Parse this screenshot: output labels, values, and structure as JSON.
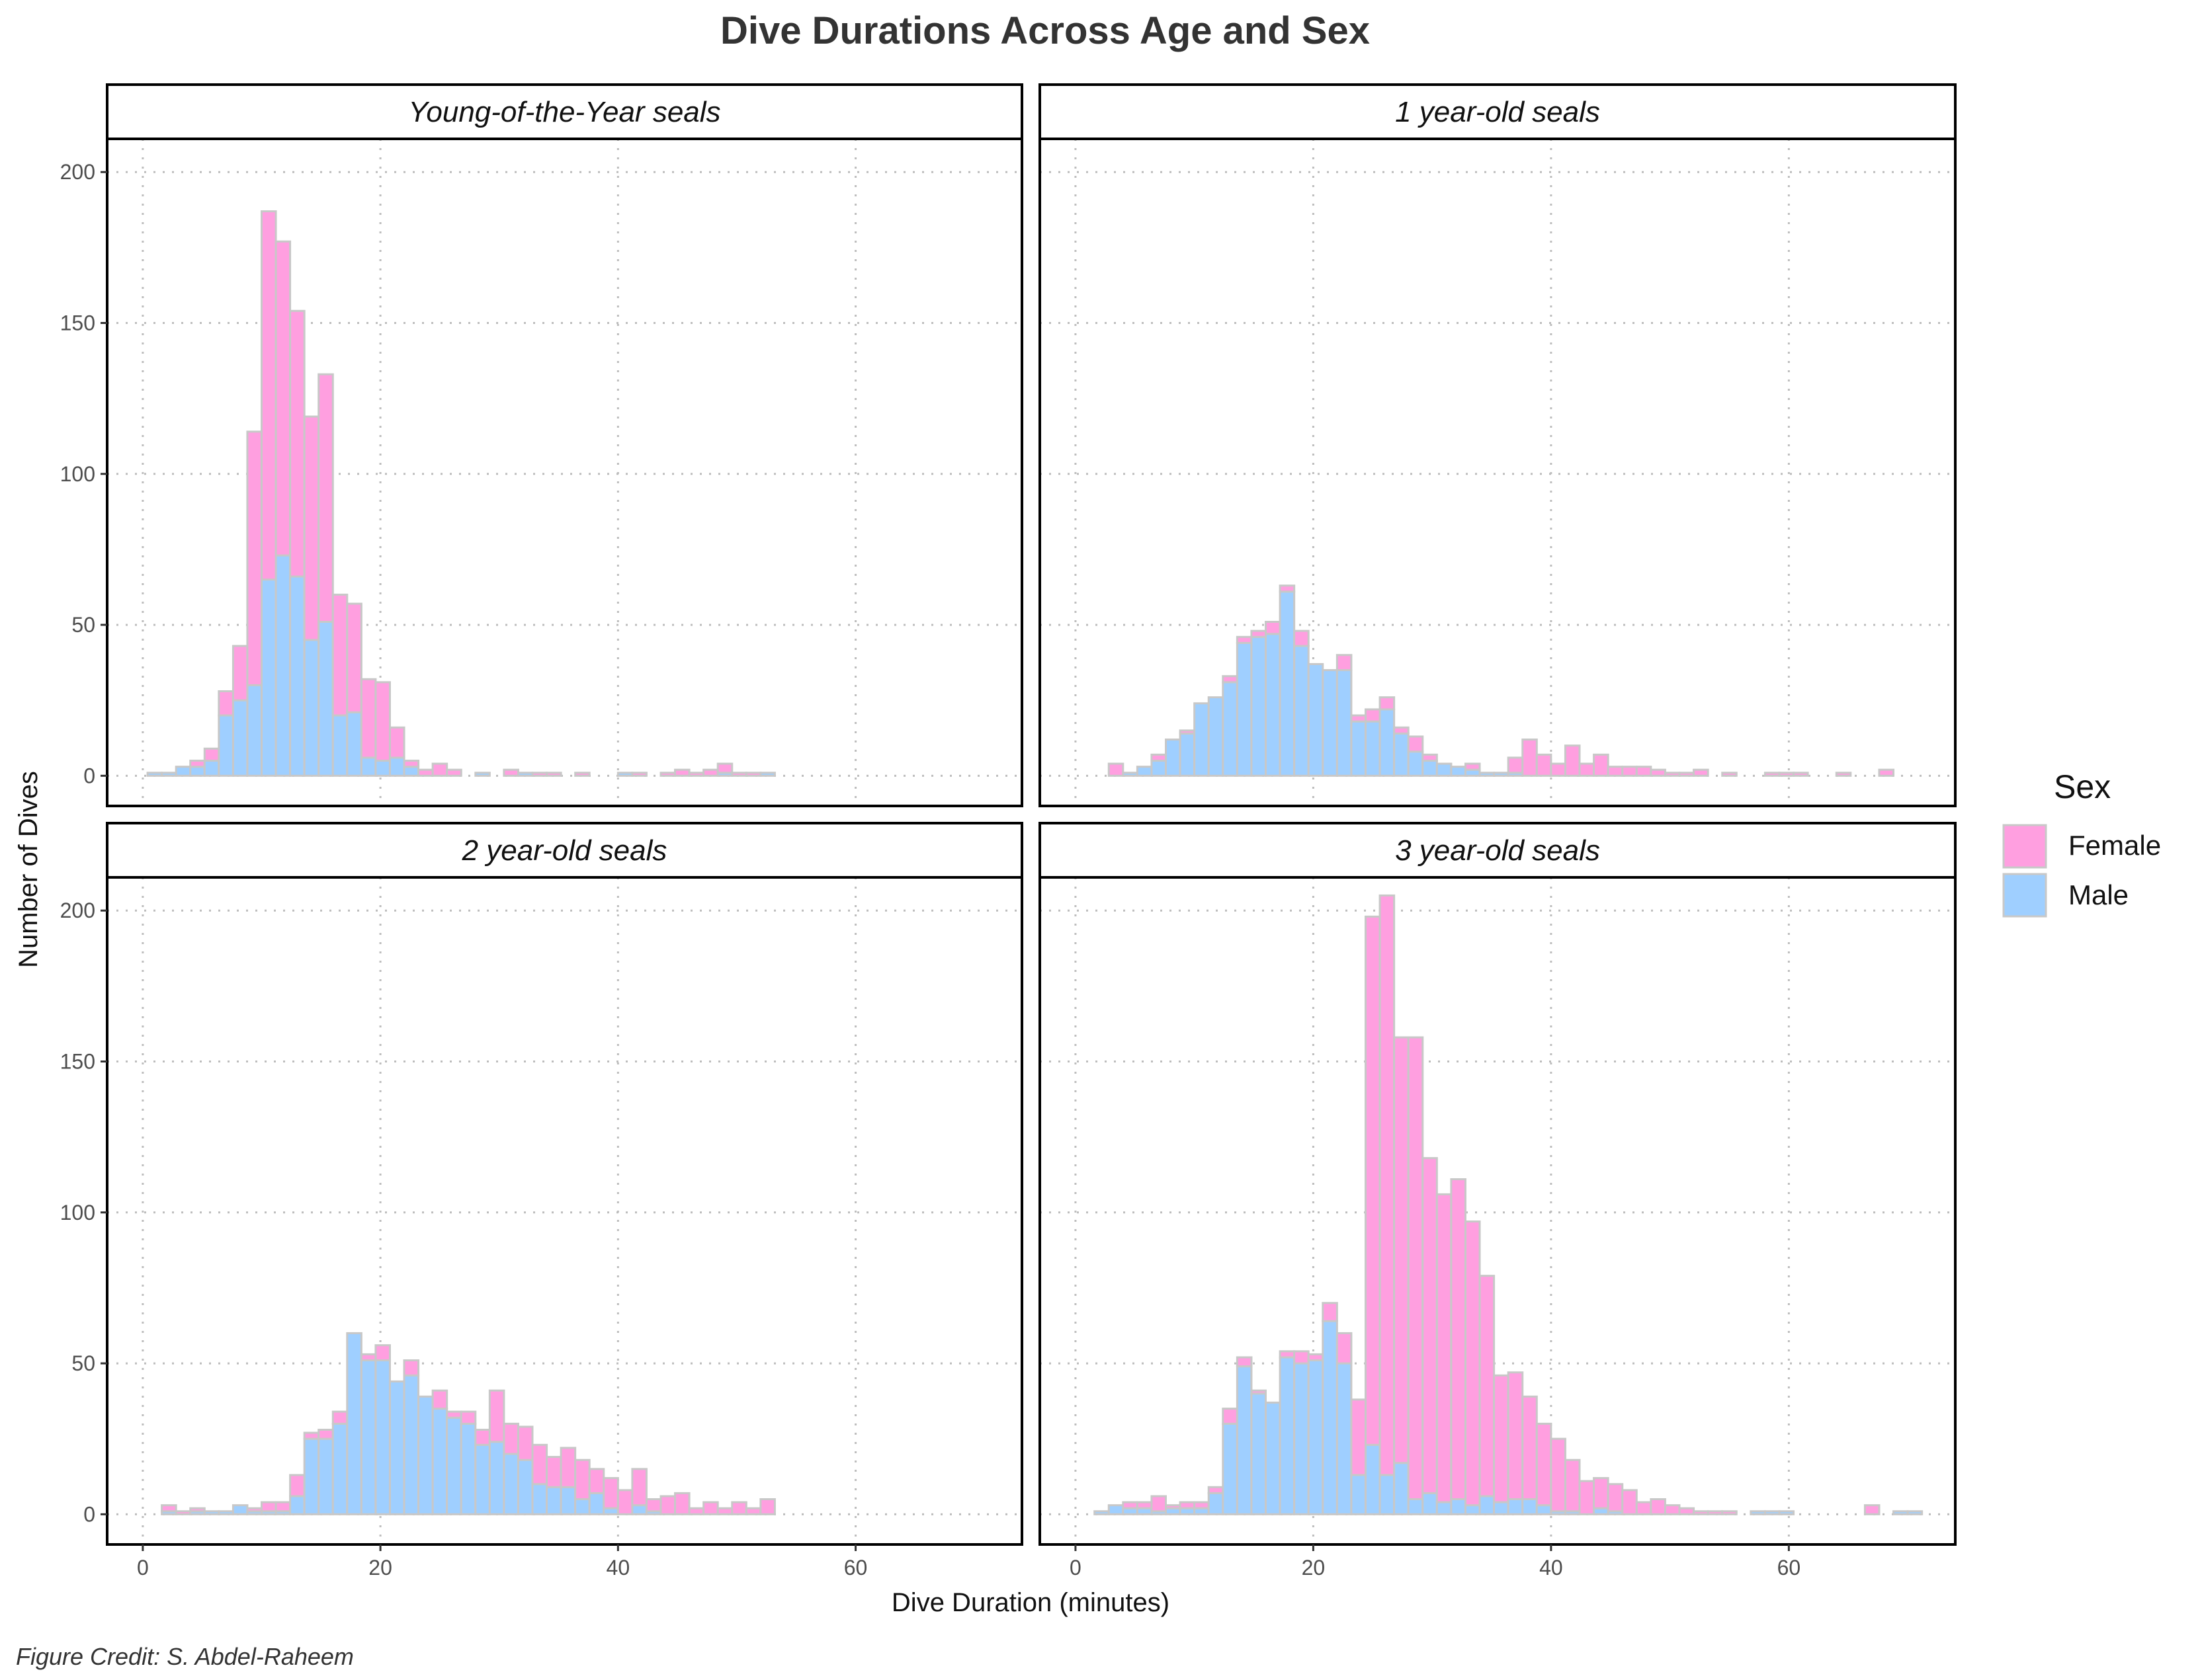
{
  "chart_data": {
    "type": "histogram",
    "title": "Dive Durations Across Age and Sex",
    "xlabel": "Dive Duration (minutes)",
    "ylabel": "Number of Dives",
    "caption": "Figure Credit: S. Abdel-Raheem",
    "xlim": [
      -3,
      74
    ],
    "ylim": [
      -10,
      211
    ],
    "xticks": [
      0,
      20,
      40,
      60
    ],
    "yticks": [
      0,
      50,
      100,
      150,
      200
    ],
    "bin_width": 1.2,
    "bin_start": 0.4,
    "grid": true,
    "position": "stacked (Female on top of Male)",
    "legend": {
      "title": "Sex",
      "placement": "right",
      "entries": [
        {
          "name": "Female",
          "color": "#ff9fe0"
        },
        {
          "name": "Male",
          "color": "#9fcfff"
        }
      ]
    },
    "colors": {
      "female": "#ff9fe0",
      "male": "#9fcfff",
      "bar_outline": "#c8c8c8",
      "grid": "#bdbdbd",
      "strip_border": "#000000"
    },
    "panels": [
      {
        "strip": "Young-of-the-Year seals",
        "female": [
          0,
          0,
          0,
          2,
          4,
          8,
          18,
          84,
          122,
          104,
          88,
          74,
          82,
          40,
          36,
          26,
          26,
          10,
          2,
          2,
          4,
          2,
          0,
          0,
          0,
          2,
          0,
          1,
          1,
          0,
          1,
          0,
          0,
          0,
          1,
          0,
          1,
          2,
          1,
          2,
          3,
          1,
          1,
          0,
          0,
          0,
          0,
          0,
          0,
          0,
          0,
          0,
          0,
          0,
          0,
          0,
          0,
          0,
          0
        ],
        "male": [
          1,
          1,
          3,
          3,
          5,
          20,
          25,
          30,
          65,
          73,
          66,
          45,
          51,
          20,
          21,
          6,
          5,
          6,
          3,
          0,
          0,
          0,
          0,
          1,
          0,
          0,
          1,
          0,
          0,
          0,
          0,
          0,
          0,
          1,
          0,
          0,
          0,
          0,
          0,
          0,
          1,
          0,
          0,
          1,
          0,
          0,
          0,
          0,
          0,
          0,
          0,
          0,
          0,
          0,
          0,
          0,
          0,
          0,
          0
        ]
      },
      {
        "strip": "1 year-old seals",
        "female": [
          0,
          0,
          4,
          0,
          0,
          2,
          0,
          1,
          0,
          0,
          2,
          2,
          2,
          4,
          2,
          5,
          0,
          0,
          5,
          2,
          4,
          4,
          2,
          5,
          2,
          0,
          0,
          2,
          0,
          0,
          5,
          12,
          7,
          4,
          10,
          4,
          7,
          3,
          3,
          3,
          2,
          1,
          1,
          2,
          0,
          1,
          0,
          0,
          1,
          1,
          1,
          0,
          0,
          1,
          0,
          0,
          2,
          0,
          0
        ],
        "male": [
          0,
          0,
          0,
          1,
          3,
          5,
          12,
          14,
          24,
          26,
          31,
          44,
          46,
          47,
          61,
          43,
          37,
          35,
          35,
          18,
          18,
          22,
          14,
          8,
          5,
          4,
          3,
          2,
          1,
          1,
          1,
          0,
          0,
          0,
          0,
          0,
          0,
          0,
          0,
          0,
          0,
          0,
          0,
          0,
          0,
          0,
          0,
          0,
          0,
          0,
          0,
          0,
          0,
          0,
          0,
          0,
          0,
          0,
          0
        ]
      },
      {
        "strip": "2 year-old seals",
        "female": [
          0,
          2,
          1,
          1,
          0,
          0,
          0,
          1,
          3,
          3,
          7,
          2,
          3,
          4,
          0,
          2,
          5,
          0,
          5,
          0,
          6,
          2,
          4,
          5,
          17,
          10,
          11,
          13,
          10,
          13,
          13,
          8,
          10,
          8,
          12,
          4,
          6,
          7,
          2,
          4,
          2,
          4,
          2,
          5,
          0,
          0,
          0,
          0,
          0,
          0,
          0,
          0,
          0,
          0,
          0,
          0,
          0,
          0,
          0
        ],
        "male": [
          0,
          1,
          0,
          1,
          1,
          1,
          3,
          1,
          1,
          1,
          6,
          25,
          25,
          30,
          60,
          51,
          51,
          44,
          46,
          39,
          35,
          32,
          30,
          23,
          24,
          20,
          18,
          10,
          9,
          9,
          5,
          7,
          2,
          0,
          3,
          1,
          0,
          0,
          0,
          0,
          0,
          0,
          0,
          0,
          0,
          0,
          0,
          0,
          0,
          0,
          0,
          0,
          0,
          0,
          0,
          0,
          0,
          0,
          0
        ]
      },
      {
        "strip": "3 year-old seals",
        "female": [
          0,
          0,
          0,
          2,
          2,
          5,
          1,
          2,
          2,
          2,
          5,
          3,
          1,
          0,
          2,
          4,
          2,
          6,
          10,
          25,
          175,
          192,
          141,
          153,
          111,
          102,
          106,
          94,
          73,
          42,
          42,
          34,
          27,
          24,
          17,
          11,
          10,
          9,
          8,
          4,
          5,
          3,
          2,
          1,
          1,
          1,
          0,
          0,
          0,
          0,
          0,
          0,
          0,
          0,
          0,
          3,
          0,
          0,
          0
        ],
        "male": [
          0,
          1,
          3,
          2,
          2,
          1,
          2,
          2,
          2,
          7,
          30,
          49,
          40,
          37,
          52,
          50,
          51,
          64,
          50,
          13,
          23,
          13,
          17,
          5,
          7,
          4,
          5,
          3,
          6,
          4,
          5,
          5,
          3,
          1,
          1,
          0,
          2,
          1,
          0,
          0,
          0,
          0,
          0,
          0,
          0,
          0,
          0,
          1,
          1,
          1,
          0,
          0,
          0,
          0,
          0,
          0,
          0,
          1,
          1
        ]
      }
    ]
  }
}
